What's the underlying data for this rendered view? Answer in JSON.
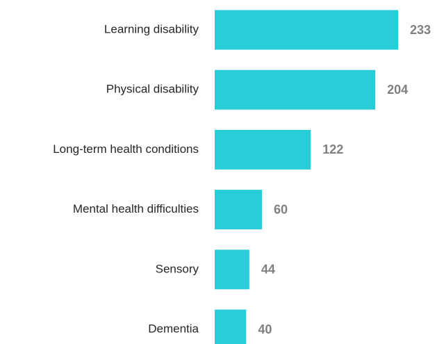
{
  "chart_data": {
    "type": "bar",
    "orientation": "horizontal",
    "categories": [
      "Learning disability",
      "Physical disability",
      "Long-term health conditions",
      "Mental health difficulties",
      "Sensory",
      "Dementia"
    ],
    "values": [
      233,
      204,
      122,
      60,
      44,
      40
    ],
    "color": "#29cdd9"
  }
}
